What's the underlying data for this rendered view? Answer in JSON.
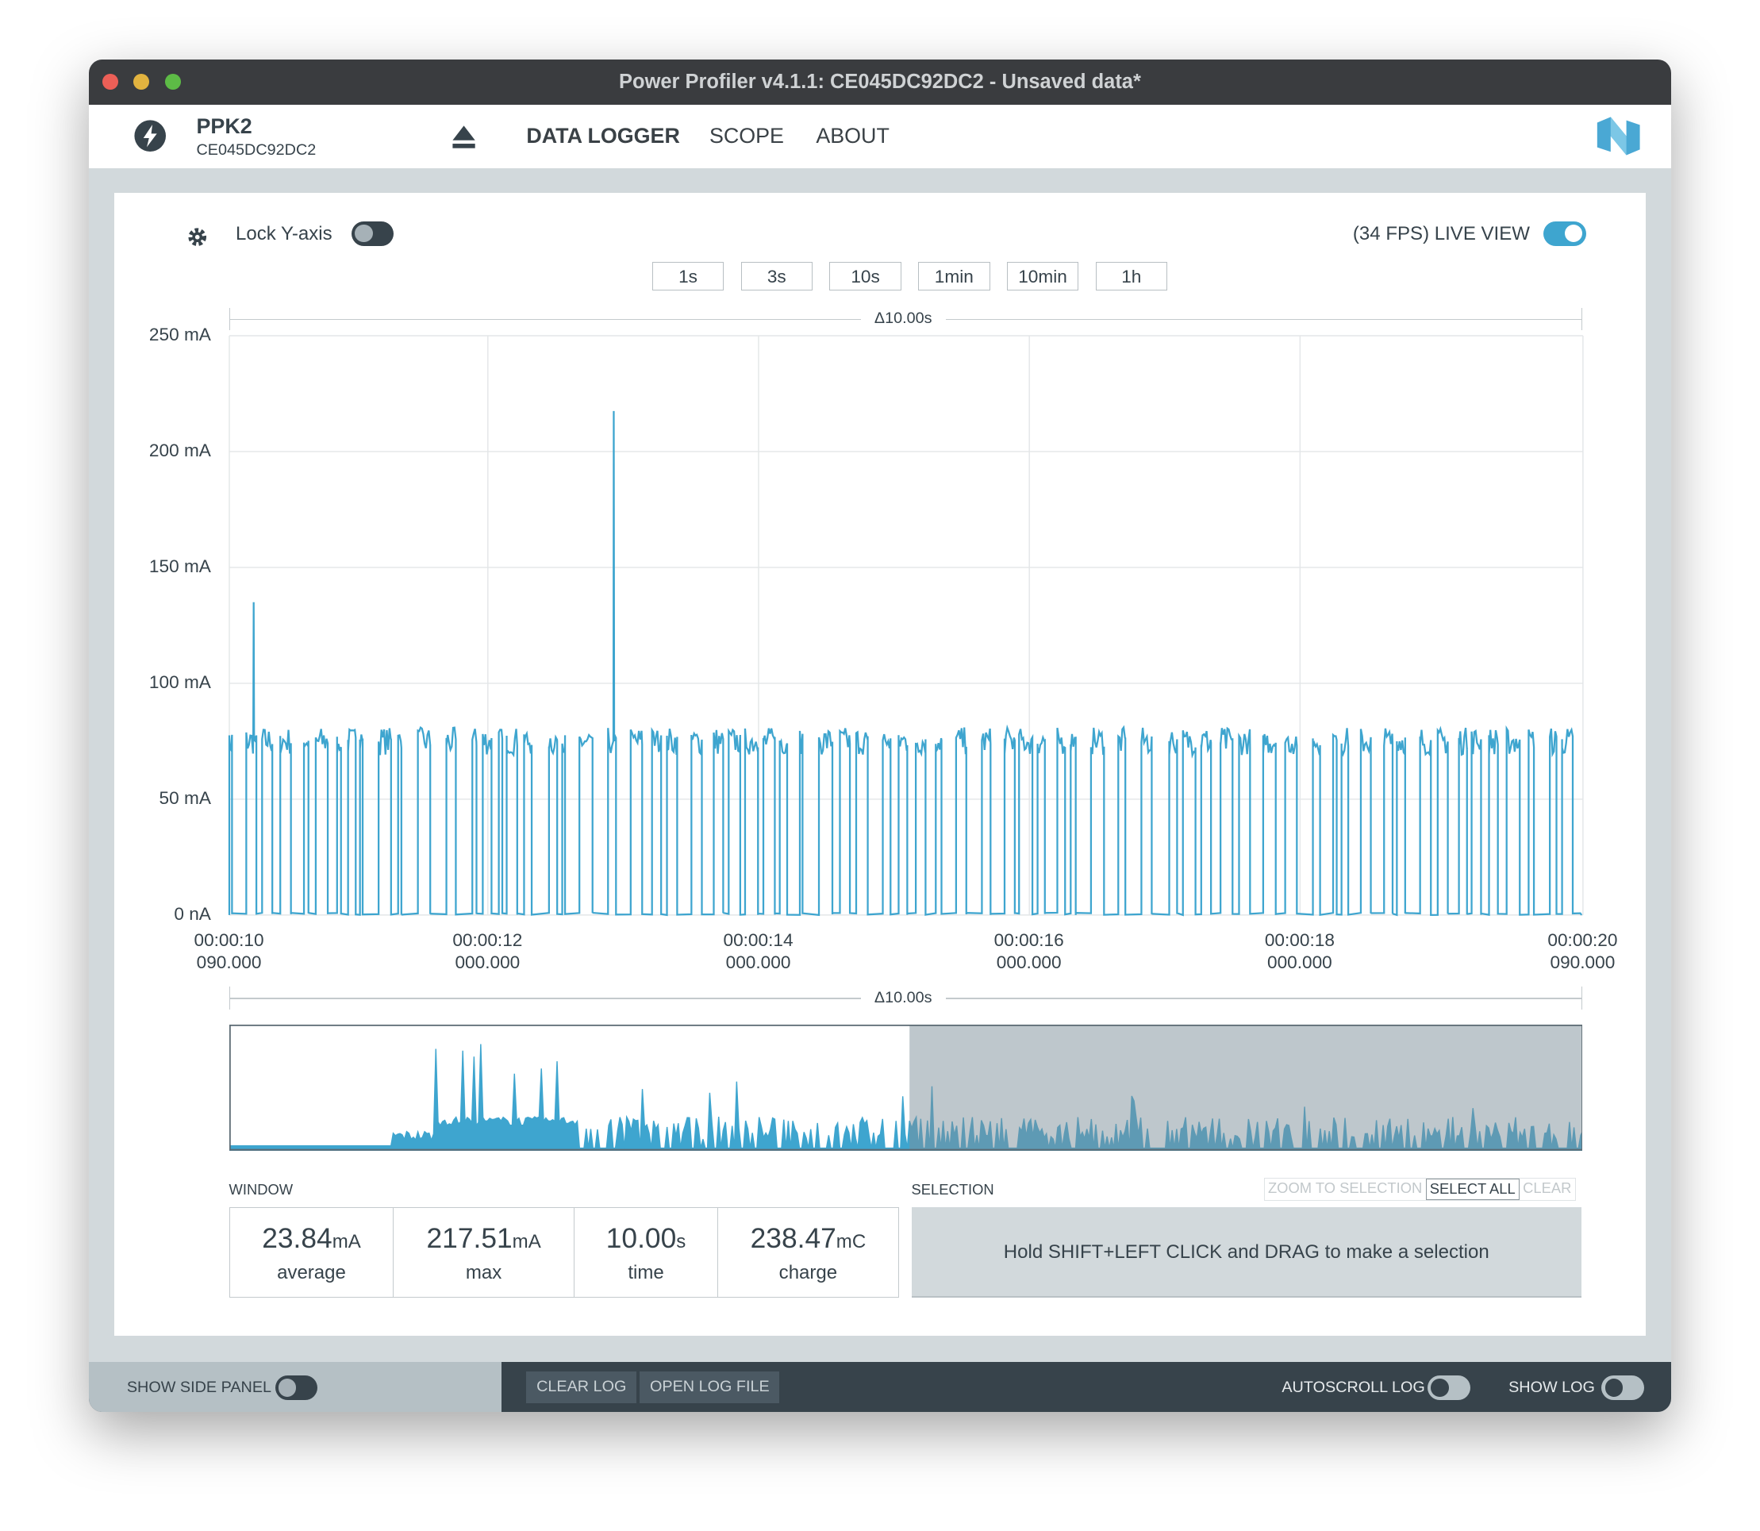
{
  "window": {
    "title": "Power Profiler v4.1.1: CE045DC92DC2 - Unsaved data*"
  },
  "device": {
    "name": "PPK2",
    "serial": "CE045DC92DC2",
    "icon": "lightning-bolt-icon"
  },
  "nav": {
    "items": [
      {
        "label": "DATA LOGGER",
        "active": true
      },
      {
        "label": "SCOPE"
      },
      {
        "label": "ABOUT"
      }
    ]
  },
  "controls": {
    "lock_y_axis_label": "Lock Y-axis",
    "lock_y_axis_on": false,
    "live_view_label": "(34 FPS) LIVE VIEW",
    "live_view_on": true,
    "time_buttons": [
      "1s",
      "3s",
      "10s",
      "1min",
      "10min",
      "1h"
    ]
  },
  "colors": {
    "accent": "#3ea5cf",
    "dark": "#37434b",
    "background": "#d2d9dc"
  },
  "chart_data": {
    "type": "line",
    "delta_label": "Δ10.00s",
    "ylim": [
      0,
      250
    ],
    "y_unit": "mA",
    "y_ticks": [
      "0 nA",
      "50 mA",
      "100 mA",
      "150 mA",
      "200 mA",
      "250 mA"
    ],
    "xlim": [
      10.09,
      20.09
    ],
    "x_ticks": [
      {
        "line1": "00:00:10",
        "line2": "090.000",
        "t": 10.09
      },
      {
        "line1": "00:00:12",
        "line2": "000.000",
        "t": 12
      },
      {
        "line1": "00:00:14",
        "line2": "000.000",
        "t": 14
      },
      {
        "line1": "00:00:16",
        "line2": "000.000",
        "t": 16
      },
      {
        "line1": "00:00:18",
        "line2": "000.000",
        "t": 18
      },
      {
        "line1": "00:00:20",
        "line2": "090.000",
        "t": 20.09
      }
    ],
    "grid": true,
    "pulse_level_mA": 75,
    "baseline_mA": 0,
    "spikes": [
      {
        "t": 10.27,
        "value": 135
      },
      {
        "t": 12.93,
        "value": 217.51
      }
    ],
    "series_color": "#3ea5cf"
  },
  "minimap": {
    "delta_label": "Δ10.00s"
  },
  "window_stats": {
    "label": "WINDOW",
    "items": [
      {
        "value": "23.84",
        "unit": "mA",
        "name": "average"
      },
      {
        "value": "217.51",
        "unit": "mA",
        "name": "max"
      },
      {
        "value": "10.00",
        "unit": "s",
        "name": "time"
      },
      {
        "value": "238.47",
        "unit": "mC",
        "name": "charge"
      }
    ]
  },
  "selection": {
    "label": "SELECTION",
    "zoom_label": "ZOOM TO SELECTION",
    "select_all_label": "SELECT ALL",
    "clear_label": "CLEAR",
    "hint": "Hold SHIFT+LEFT CLICK and DRAG to make a selection"
  },
  "footer": {
    "show_side_panel": "SHOW SIDE PANEL",
    "clear_log": "CLEAR LOG",
    "open_log_file": "OPEN LOG FILE",
    "autoscroll_log": "AUTOSCROLL LOG",
    "show_log": "SHOW LOG"
  }
}
